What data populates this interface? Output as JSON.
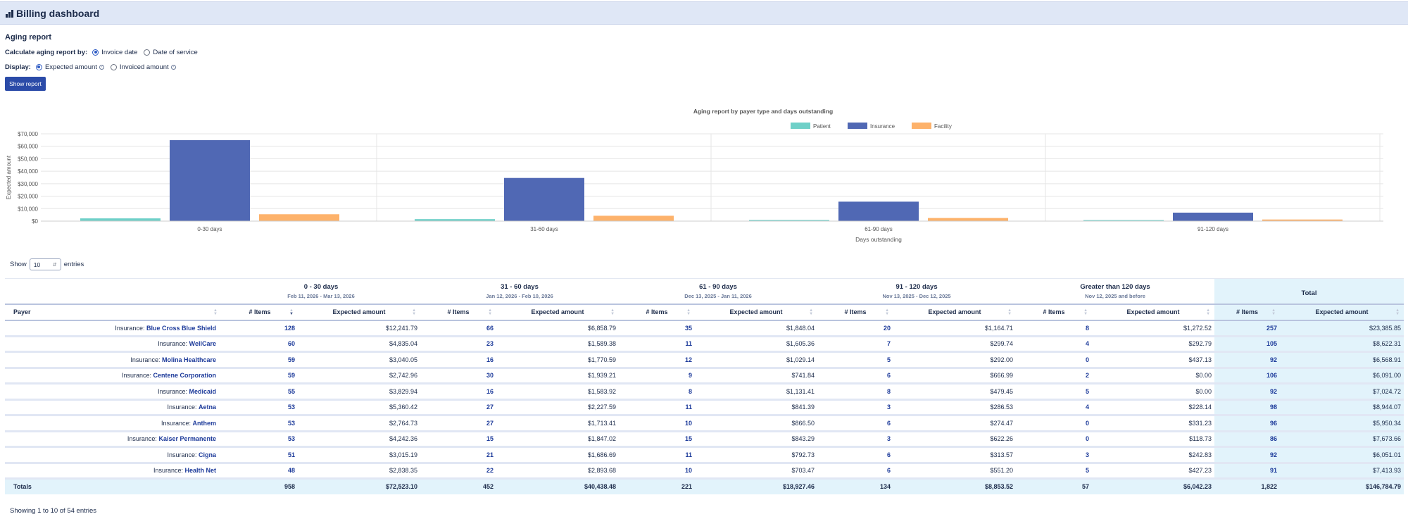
{
  "app": {
    "title": "Billing dashboard",
    "logo_icon": "bar-chart-icon"
  },
  "form": {
    "section_title": "Aging report",
    "calc_label": "Calculate aging report by:",
    "calc_options": [
      "Invoice date",
      "Date of service"
    ],
    "calc_selected": "Invoice date",
    "display_label": "Display:",
    "display_options": [
      "Expected amount",
      "Invoiced amount"
    ],
    "display_selected": "Expected amount",
    "show_button": "Show report"
  },
  "chart_data": {
    "type": "bar",
    "title": "Aging report by payer type and days outstanding",
    "xlabel": "Days outstanding",
    "ylabel": "Expected amount",
    "categories": [
      "0-30 days",
      "31-60 days",
      "61-90 days",
      "91-120 days"
    ],
    "series": [
      {
        "name": "Patient",
        "color": "#6fd0c8",
        "values": [
          2200,
          1600,
          900,
          800
        ]
      },
      {
        "name": "Insurance",
        "color": "#5068b4",
        "values": [
          64900,
          34600,
          15600,
          6800
        ]
      },
      {
        "name": "Facility",
        "color": "#fdb26b",
        "values": [
          5500,
          4300,
          2500,
          1300
        ]
      }
    ],
    "ylim": [
      0,
      70000
    ],
    "yticks": [
      "$0",
      "$10,000",
      "$20,000",
      "$30,000",
      "$40,000",
      "$50,000",
      "$60,000",
      "$70,000"
    ],
    "legend": "top-center",
    "grid": true
  },
  "table": {
    "show_label": "Show",
    "entries_label": "entries",
    "page_size": "10",
    "groups": [
      {
        "name": "0 - 30 days",
        "range": "Feb 11, 2026 - Mar 13, 2026"
      },
      {
        "name": "31 - 60 days",
        "range": "Jan 12, 2026 - Feb 10, 2026"
      },
      {
        "name": "61 - 90 days",
        "range": "Dec 13, 2025 - Jan 11, 2026"
      },
      {
        "name": "91 - 120 days",
        "range": "Nov 13, 2025 - Dec 12, 2025"
      },
      {
        "name": "Greater than 120 days",
        "range": "Nov 12, 2025 and before"
      }
    ],
    "total_group": "Total",
    "col_payer": "Payer",
    "col_items": "# Items",
    "col_amount": "Expected amount",
    "payer_prefix": "Insurance:",
    "rows": [
      {
        "payer": "Blue Cross Blue Shield",
        "cells": [
          "128",
          "$12,241.79",
          "66",
          "$6,858.79",
          "35",
          "$1,848.04",
          "20",
          "$1,164.71",
          "8",
          "$1,272.52",
          "257",
          "$23,385.85"
        ]
      },
      {
        "payer": "WellCare",
        "cells": [
          "60",
          "$4,835.04",
          "23",
          "$1,589.38",
          "11",
          "$1,605.36",
          "7",
          "$299.74",
          "4",
          "$292.79",
          "105",
          "$8,622.31"
        ]
      },
      {
        "payer": "Molina Healthcare",
        "cells": [
          "59",
          "$3,040.05",
          "16",
          "$1,770.59",
          "12",
          "$1,029.14",
          "5",
          "$292.00",
          "0",
          "$437.13",
          "92",
          "$6,568.91"
        ]
      },
      {
        "payer": "Centene Corporation",
        "cells": [
          "59",
          "$2,742.96",
          "30",
          "$1,939.21",
          "9",
          "$741.84",
          "6",
          "$666.99",
          "2",
          "$0.00",
          "106",
          "$6,091.00"
        ]
      },
      {
        "payer": "Medicaid",
        "cells": [
          "55",
          "$3,829.94",
          "16",
          "$1,583.92",
          "8",
          "$1,131.41",
          "8",
          "$479.45",
          "5",
          "$0.00",
          "92",
          "$7,024.72"
        ]
      },
      {
        "payer": "Aetna",
        "cells": [
          "53",
          "$5,360.42",
          "27",
          "$2,227.59",
          "11",
          "$841.39",
          "3",
          "$286.53",
          "4",
          "$228.14",
          "98",
          "$8,944.07"
        ]
      },
      {
        "payer": "Anthem",
        "cells": [
          "53",
          "$2,764.73",
          "27",
          "$1,713.41",
          "10",
          "$866.50",
          "6",
          "$274.47",
          "0",
          "$331.23",
          "96",
          "$5,950.34"
        ]
      },
      {
        "payer": "Kaiser Permanente",
        "cells": [
          "53",
          "$4,242.36",
          "15",
          "$1,847.02",
          "15",
          "$843.29",
          "3",
          "$622.26",
          "0",
          "$118.73",
          "86",
          "$7,673.66"
        ]
      },
      {
        "payer": "Cigna",
        "cells": [
          "51",
          "$3,015.19",
          "21",
          "$1,686.69",
          "11",
          "$792.73",
          "6",
          "$313.57",
          "3",
          "$242.83",
          "92",
          "$6,051.01"
        ]
      },
      {
        "payer": "Health Net",
        "cells": [
          "48",
          "$2,838.35",
          "22",
          "$2,893.68",
          "10",
          "$703.47",
          "6",
          "$551.20",
          "5",
          "$427.23",
          "91",
          "$7,413.93"
        ]
      }
    ],
    "totals_label": "Totals",
    "totals": [
      "958",
      "$72,523.10",
      "452",
      "$40,438.48",
      "221",
      "$18,927.46",
      "134",
      "$8,853.52",
      "57",
      "$6,042.23",
      "1,822",
      "$146,784.79"
    ],
    "footer": "Showing 1 to 10 of 54 entries"
  }
}
